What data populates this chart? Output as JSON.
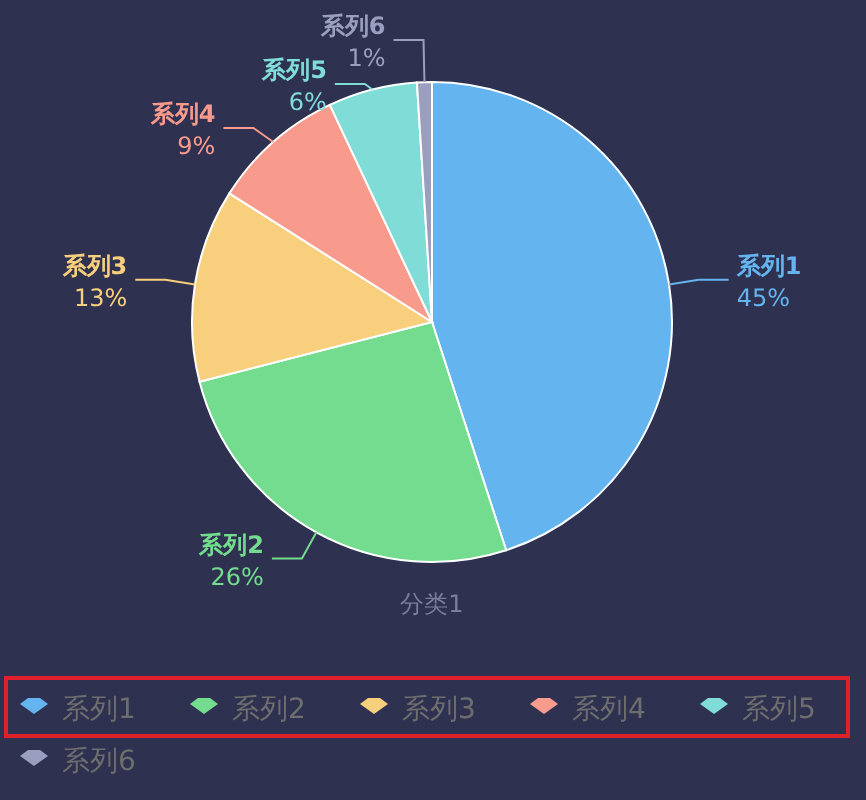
{
  "chart_data": {
    "type": "pie",
    "categories": [
      "系列1",
      "系列2",
      "系列3",
      "系列4",
      "系列5",
      "系列6"
    ],
    "values": [
      45,
      26,
      13,
      9,
      6,
      1
    ],
    "colors": [
      "#63b4ef",
      "#74dc8e",
      "#f8cf7d",
      "#f89a8c",
      "#80dcd6",
      "#9a9fbf"
    ],
    "value_labels": [
      "45%",
      "26%",
      "13%",
      "9%",
      "6%",
      "1%"
    ],
    "data_labels": true,
    "legend": "bottom",
    "annotations": [
      "分类1"
    ]
  }
}
